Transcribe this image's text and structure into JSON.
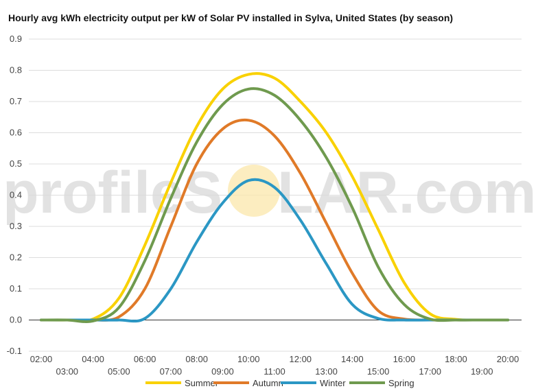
{
  "title": "Hourly avg kWh electricity output per kW of Solar PV installed in Sylva, United States (by season)",
  "watermark": {
    "left": "profileS",
    "right": "LAR.com"
  },
  "colors": {
    "summer": "#f9d100",
    "autumn": "#e07a28",
    "winter": "#2b97c4",
    "spring": "#6f9a4e",
    "grid": "#dddddd",
    "zero_line": "#333333",
    "sun": "#fbe9b0"
  },
  "chart_data": {
    "type": "line",
    "title": "Hourly avg kWh electricity output per kW of Solar PV installed in Sylva, United States (by season)",
    "xlabel": "",
    "ylabel": "",
    "ylim": [
      -0.1,
      0.9
    ],
    "yticks": [
      "-0.1",
      "0.0",
      "0.1",
      "0.2",
      "0.3",
      "0.4",
      "0.5",
      "0.6",
      "0.7",
      "0.8",
      "0.9"
    ],
    "x": [
      "02:00",
      "03:00",
      "04:00",
      "05:00",
      "06:00",
      "07:00",
      "08:00",
      "09:00",
      "10:00",
      "11:00",
      "12:00",
      "13:00",
      "14:00",
      "15:00",
      "16:00",
      "17:00",
      "18:00",
      "19:00",
      "20:00"
    ],
    "grid": true,
    "legend": "bottom",
    "series": [
      {
        "name": "Summer",
        "color": "#f9d100",
        "values": [
          0,
          0,
          0.003,
          0.07,
          0.24,
          0.44,
          0.62,
          0.74,
          0.787,
          0.775,
          0.7,
          0.6,
          0.46,
          0.29,
          0.12,
          0.02,
          0.002,
          0,
          0
        ]
      },
      {
        "name": "Autumn",
        "color": "#e07a28",
        "values": [
          0,
          0,
          0,
          0.01,
          0.1,
          0.3,
          0.5,
          0.612,
          0.64,
          0.59,
          0.47,
          0.31,
          0.15,
          0.03,
          0.003,
          0,
          0,
          0,
          0
        ]
      },
      {
        "name": "Winter",
        "color": "#2b97c4",
        "values": [
          0,
          0,
          0,
          0,
          0.005,
          0.1,
          0.25,
          0.375,
          0.447,
          0.425,
          0.32,
          0.18,
          0.05,
          0.005,
          0,
          0,
          0,
          0,
          0
        ]
      },
      {
        "name": "Spring",
        "color": "#6f9a4e",
        "values": [
          0,
          0,
          -0.003,
          0.04,
          0.19,
          0.39,
          0.57,
          0.69,
          0.74,
          0.72,
          0.64,
          0.52,
          0.36,
          0.17,
          0.05,
          0.003,
          0,
          0,
          0
        ]
      }
    ]
  }
}
